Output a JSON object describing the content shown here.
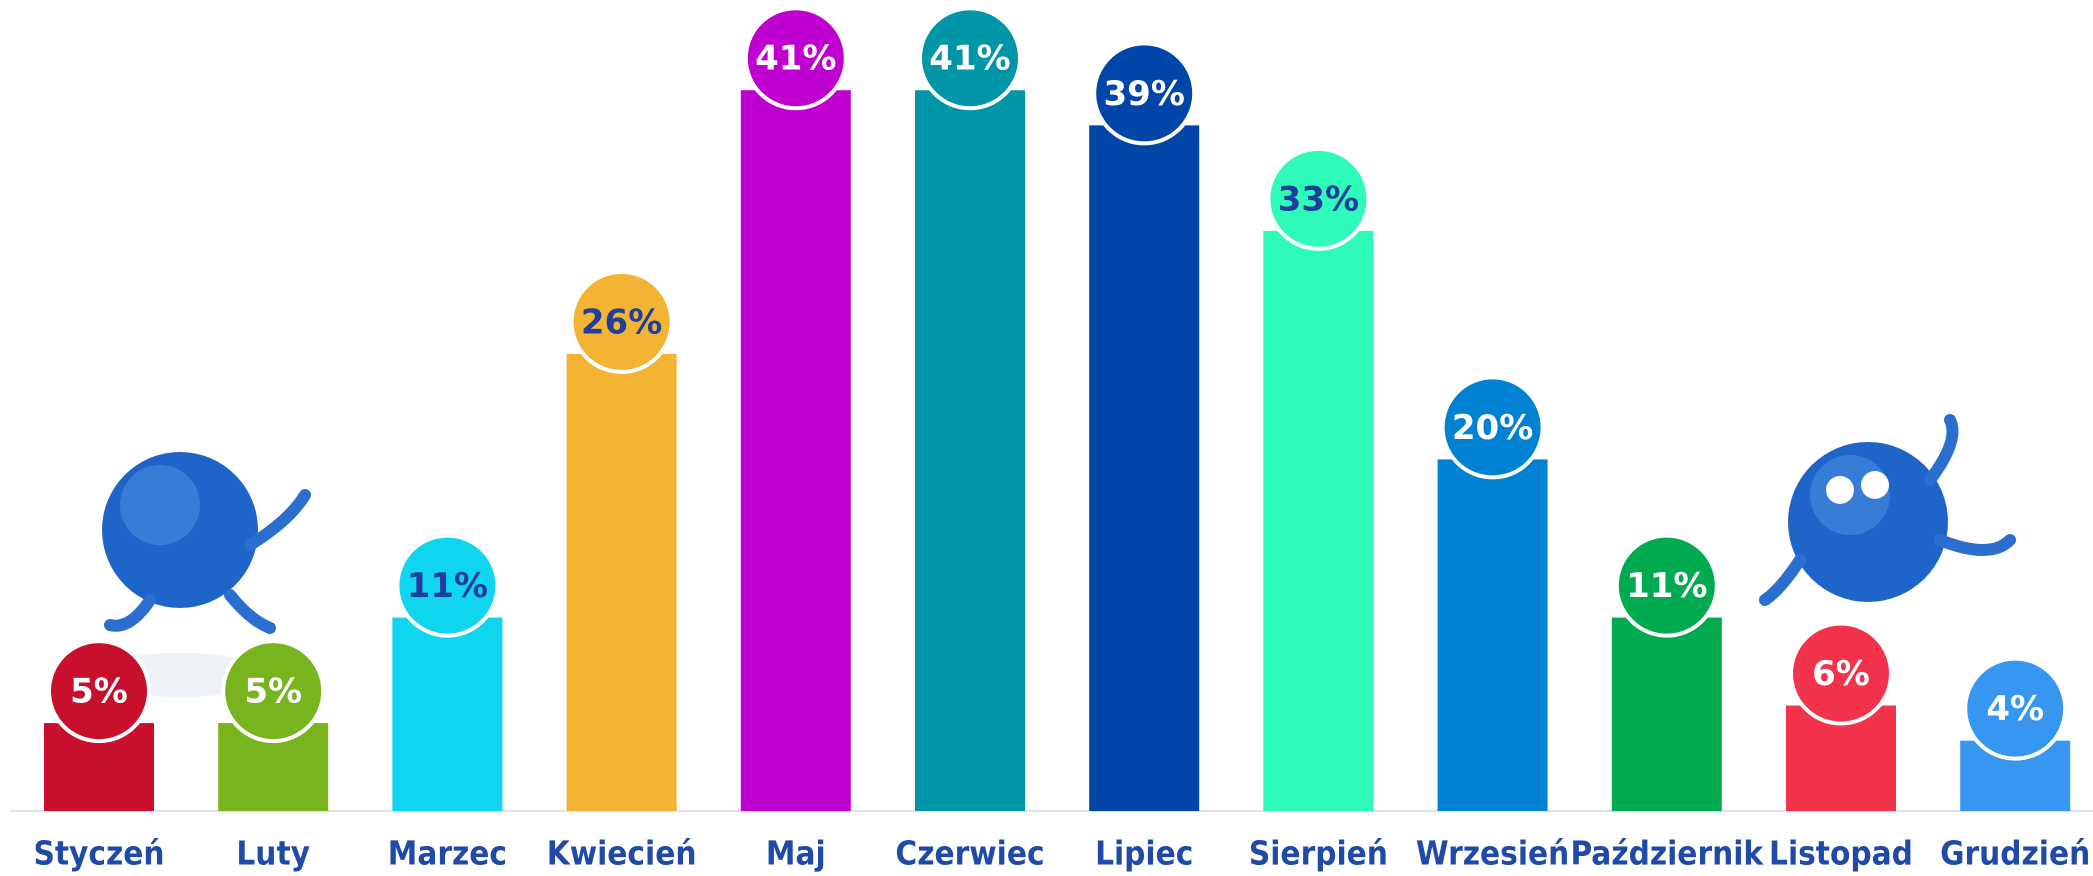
{
  "chart_data": {
    "type": "bar",
    "categories": [
      "Styczeń",
      "Luty",
      "Marzec",
      "Kwiecień",
      "Maj",
      "Czerwiec",
      "Lipiec",
      "Sierpień",
      "Wrzesień",
      "Październik",
      "Listopad",
      "Grudzień"
    ],
    "values": [
      5,
      5,
      11,
      26,
      41,
      41,
      39,
      33,
      20,
      11,
      6,
      4
    ],
    "value_labels": [
      "5%",
      "5%",
      "11%",
      "26%",
      "41%",
      "41%",
      "39%",
      "33%",
      "20%",
      "11%",
      "6%",
      "4%"
    ],
    "colors": [
      "#c8102e",
      "#78b41e",
      "#0fd5ef",
      "#f4b433",
      "#c000d0",
      "#0096a8",
      "#0046a8",
      "#2efab9",
      "#0082d2",
      "#00aa50",
      "#f2334b",
      "#3696f0"
    ]
  }
}
